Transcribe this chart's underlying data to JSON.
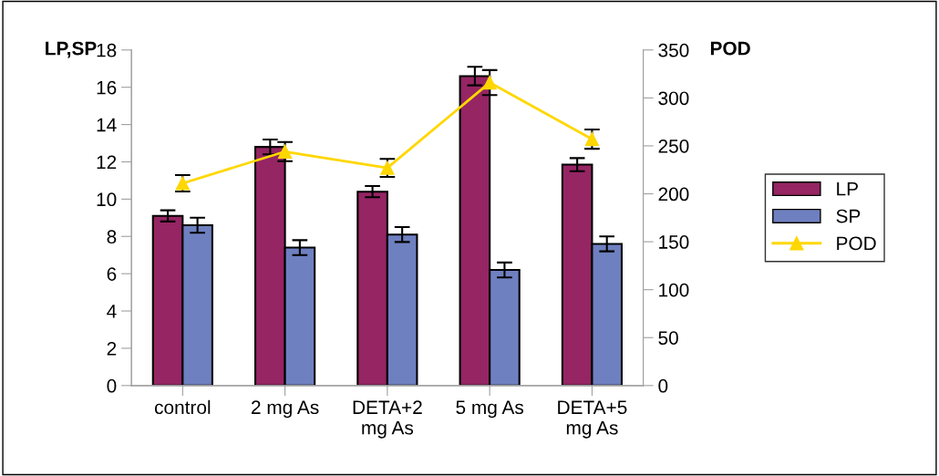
{
  "chart_data": {
    "type": "bar",
    "ylabel": "LP,SP",
    "y2label": "POD",
    "categories": [
      "control",
      "2 mg As",
      "DETA+2 mg As",
      "5 mg As",
      "DETA+5 mg As"
    ],
    "series": [
      {
        "name": "LP",
        "color": "#952563",
        "values": [
          9.1,
          12.8,
          10.4,
          16.6,
          11.85
        ],
        "errors": [
          0.3,
          0.4,
          0.3,
          0.5,
          0.35
        ]
      },
      {
        "name": "SP",
        "color": "#6e80c0",
        "values": [
          8.6,
          7.4,
          8.1,
          6.2,
          7.6
        ],
        "errors": [
          0.4,
          0.4,
          0.4,
          0.4,
          0.4
        ]
      },
      {
        "name": "POD",
        "type": "line",
        "axis": "y2",
        "color": "#ffd700",
        "marker": "triangle",
        "values": [
          211,
          244,
          227,
          316,
          257
        ],
        "errors": [
          8.6,
          10,
          9.4,
          13,
          10
        ]
      }
    ],
    "ylim": [
      0,
      18
    ],
    "yticks": [
      0,
      2,
      4,
      6,
      8,
      10,
      12,
      14,
      16,
      18
    ],
    "y2lim": [
      0,
      350
    ],
    "y2ticks": [
      0,
      50,
      100,
      150,
      200,
      250,
      300,
      350
    ],
    "grid": false,
    "legend": "right"
  }
}
